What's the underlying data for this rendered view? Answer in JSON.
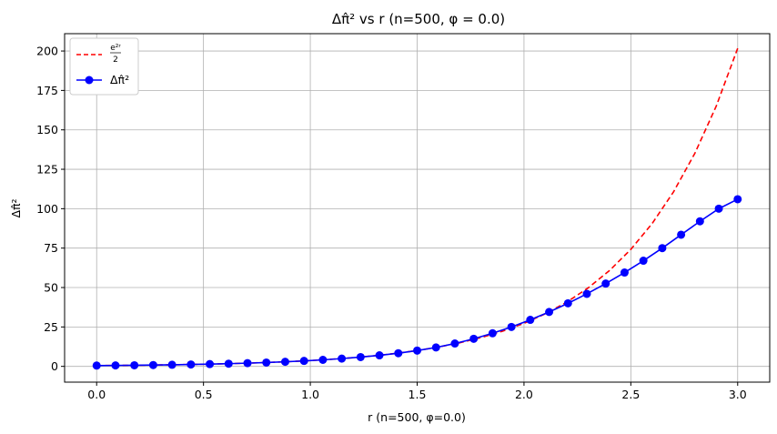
{
  "chart_data": {
    "type": "line",
    "title": "Δπ̂² vs r (n=500, φ = 0.0)",
    "xlabel": "r (n=500, φ=0.0)",
    "ylabel": "Δπ̂²",
    "xlim": [
      -0.15,
      3.15
    ],
    "ylim": [
      -10,
      211
    ],
    "xticks": [
      0.0,
      0.5,
      1.0,
      1.5,
      2.0,
      2.5,
      3.0
    ],
    "xtick_labels": [
      "0.0",
      "0.5",
      "1.0",
      "1.5",
      "2.0",
      "2.5",
      "3.0"
    ],
    "yticks": [
      0,
      25,
      50,
      75,
      100,
      125,
      150,
      175,
      200
    ],
    "ytick_labels": [
      "0",
      "25",
      "50",
      "75",
      "100",
      "125",
      "150",
      "175",
      "200"
    ],
    "grid": true,
    "legend_position": "top-left",
    "legend": {
      "entry1_numerator": "e²ʳ",
      "entry1_denominator": "2",
      "entry2_label": "Δπ̂²"
    },
    "series": [
      {
        "name": "e²ʳ/2",
        "color": "#ff0000",
        "style": "dashed",
        "x": [
          0.0,
          0.1,
          0.2,
          0.3,
          0.4,
          0.5,
          0.6,
          0.7,
          0.8,
          0.9,
          1.0,
          1.1,
          1.2,
          1.3,
          1.4,
          1.5,
          1.6,
          1.7,
          1.8,
          1.9,
          2.0,
          2.1,
          2.2,
          2.3,
          2.4,
          2.5,
          2.6,
          2.7,
          2.8,
          2.9,
          3.0
        ],
        "values": [
          0.5,
          0.61,
          0.75,
          0.91,
          1.11,
          1.36,
          1.66,
          2.03,
          2.48,
          3.02,
          3.69,
          4.51,
          5.51,
          6.73,
          8.22,
          10.04,
          12.27,
          14.98,
          18.3,
          22.35,
          27.3,
          33.34,
          40.72,
          49.74,
          60.75,
          74.21,
          90.64,
          110.71,
          135.22,
          165.15,
          201.71
        ]
      },
      {
        "name": "Δπ̂²",
        "color": "#0000ff",
        "style": "solid-marker",
        "x": [
          0.0,
          0.0882,
          0.1765,
          0.2647,
          0.3529,
          0.4412,
          0.5294,
          0.6176,
          0.7059,
          0.7941,
          0.8824,
          0.9706,
          1.0588,
          1.1471,
          1.2353,
          1.3235,
          1.4118,
          1.5,
          1.5882,
          1.6765,
          1.7647,
          1.8529,
          1.9412,
          2.0294,
          2.1176,
          2.2059,
          2.2941,
          2.3824,
          2.4706,
          2.5588,
          2.6471,
          2.7353,
          2.8235,
          2.9118,
          3.0
        ],
        "values": [
          0.5,
          0.6,
          0.71,
          0.85,
          1.01,
          1.21,
          1.44,
          1.72,
          2.05,
          2.44,
          2.91,
          3.47,
          4.14,
          4.93,
          5.88,
          7.0,
          8.35,
          10.0,
          12.0,
          14.5,
          17.5,
          21.0,
          25.0,
          29.5,
          34.5,
          40.0,
          46.0,
          52.5,
          59.5,
          67.0,
          75.0,
          83.5,
          92.0,
          100.0,
          106.0
        ]
      }
    ]
  }
}
